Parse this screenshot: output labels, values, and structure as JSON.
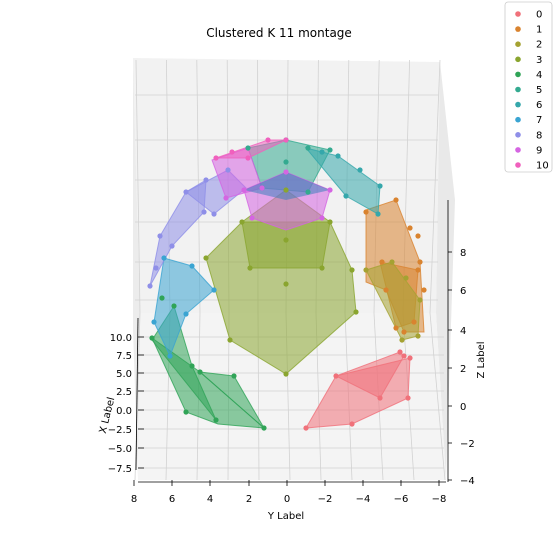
{
  "chart_data": {
    "type": "scatter",
    "projection": "3d",
    "title": "Clustered K 11 montage",
    "xlabel": "X Label",
    "ylabel": "Y Label",
    "zlabel": "Z Label",
    "x_ticks": [
      "10.0",
      "7.5",
      "5.0",
      "2.5",
      "0.0",
      "−2.5",
      "−5.0",
      "−7.5"
    ],
    "y_ticks": [
      "8",
      "6",
      "4",
      "2",
      "0",
      "−2",
      "−4",
      "−6",
      "−8"
    ],
    "z_ticks": [
      "8",
      "6",
      "4",
      "2",
      "0",
      "−2",
      "−4"
    ],
    "xlim": [
      -8.5,
      10.5
    ],
    "ylim": [
      -8.5,
      8.5
    ],
    "zlim": [
      -4.5,
      9.5
    ],
    "grid": true,
    "legend_position": "top-right, outside",
    "series": [
      {
        "name": "0",
        "color": "#f0717a"
      },
      {
        "name": "1",
        "color": "#d9832f"
      },
      {
        "name": "2",
        "color": "#a5a232"
      },
      {
        "name": "3",
        "color": "#8aa52f"
      },
      {
        "name": "4",
        "color": "#30a457"
      },
      {
        "name": "5",
        "color": "#33aa90"
      },
      {
        "name": "6",
        "color": "#35a7ab"
      },
      {
        "name": "7",
        "color": "#3aa4d2"
      },
      {
        "name": "8",
        "color": "#8f8fe8"
      },
      {
        "name": "9",
        "color": "#d565e2"
      },
      {
        "name": "10",
        "color": "#f060bd"
      }
    ]
  }
}
